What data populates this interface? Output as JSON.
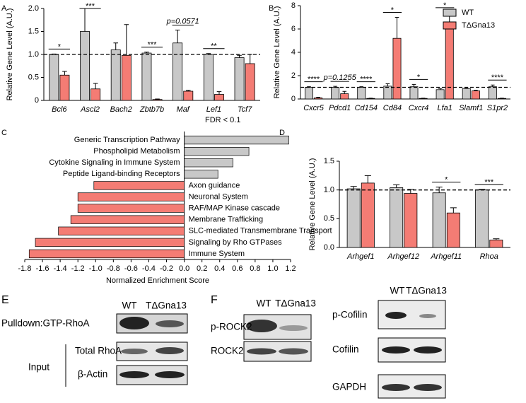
{
  "chart_data": [
    {
      "type": "bar",
      "panel": "A",
      "ylabel": "Relative Gene Level (A.U.)",
      "categories": [
        "Bcl6",
        "Ascl2",
        "Bach2",
        "Zbtb7b",
        "Maf",
        "Lef1",
        "Tcf7"
      ],
      "series": [
        {
          "name": "WT",
          "color": "#c8c8c8",
          "values": [
            1.0,
            1.5,
            1.1,
            1.03,
            1.25,
            1.0,
            0.93
          ],
          "errors": [
            0.01,
            0.5,
            0.15,
            0.02,
            0.28,
            0.02,
            0.05
          ]
        },
        {
          "name": "TΔGna13",
          "color": "#f47c74",
          "values": [
            0.55,
            0.25,
            0.98,
            0.02,
            0.2,
            0.13,
            0.8
          ],
          "errors": [
            0.08,
            0.12,
            0.67,
            0.01,
            0.02,
            0.06,
            0.2
          ]
        }
      ],
      "annotations": [
        "*",
        "***",
        null,
        "***",
        "p=0.0571",
        "**",
        null
      ],
      "reference_line": 1,
      "ylim": [
        0,
        2
      ],
      "yticks": [
        0,
        0.5,
        {
          "value": 1,
          "label": "1.0"
        },
        1.5,
        {
          "value": 2,
          "label": "2.0"
        }
      ]
    },
    {
      "type": "bar",
      "panel": "B",
      "ylabel": "Relative Gene Level (A.U.)",
      "categories": [
        "Cxcr5",
        "Pdcd1",
        "Cd154",
        "Cd84",
        "Cxcr4",
        "Lfa1",
        "Slamf1",
        "S1pr2"
      ],
      "series": [
        {
          "name": "WT",
          "color": "#c8c8c8",
          "values": [
            1.0,
            1.0,
            1.0,
            1.1,
            1.05,
            0.8,
            0.9,
            1.05
          ],
          "errors": [
            0.05,
            0.08,
            0.05,
            0.2,
            0.2,
            0.1,
            0.05,
            0.15
          ]
        },
        {
          "name": "TΔGna13",
          "color": "#f47c74",
          "values": [
            0.1,
            0.45,
            0.05,
            5.2,
            0.05,
            6.4,
            0.7,
            0.05
          ],
          "errors": [
            0.05,
            0.2,
            0.02,
            1.8,
            0.02,
            1.0,
            0.05,
            0.02
          ]
        }
      ],
      "annotations": [
        "****",
        "p=0.1255",
        "****",
        "*",
        "*",
        "*",
        null,
        "****"
      ],
      "reference_line": 1,
      "legend": "upper right",
      "ylim": [
        0,
        8
      ],
      "yticks": [
        0,
        2,
        4,
        6,
        8
      ]
    },
    {
      "type": "barh",
      "panel": "C",
      "note": "FDR < 0.1",
      "xlabel": "Normalized Enrichment Score",
      "categories": [
        "Generic Transcription Pathway",
        "Phospholipid Metabolism",
        "Cytokine Signaling in Immune System",
        "Peptide Ligand-binding Receptors",
        "Axon guidance",
        "Neuronal System",
        "RAF/MAP Kinase cascade",
        "Membrane Trafficking",
        "SLC-mediated Transmembrane Transport",
        "Signaling by Rho GTPases",
        "Immune System"
      ],
      "values": [
        1.18,
        0.73,
        0.55,
        0.38,
        -1.02,
        -1.2,
        -1.2,
        -1.28,
        -1.42,
        -1.68,
        -1.75
      ],
      "colors": [
        "#c8c8c8",
        "#c8c8c8",
        "#c8c8c8",
        "#c8c8c8",
        "#f47c74",
        "#f47c74",
        "#f47c74",
        "#f47c74",
        "#f47c74",
        "#f47c74",
        "#f47c74"
      ],
      "highlight_index": 9,
      "highlight_color": "#e0201b",
      "xlim": [
        -1.8,
        1.2
      ],
      "xticks": [
        -1.8,
        -1.6,
        -1.4,
        -1.2,
        {
          "value": -1,
          "label": "-1.0"
        },
        -0.8,
        -0.6,
        -0.4,
        -0.2,
        {
          "value": 0,
          "label": "0.0"
        },
        0.2,
        0.4,
        0.6,
        0.8,
        {
          "value": 1,
          "label": "1.0"
        },
        1.2
      ]
    },
    {
      "type": "bar",
      "panel": "D",
      "ylabel": "Relative Gene Level (A.U.)",
      "categories": [
        "Arhgef1",
        "Arhgef12",
        "Arhgef11",
        "Rhoa"
      ],
      "series": [
        {
          "name": "WT",
          "color": "#c8c8c8",
          "values": [
            1.02,
            1.04,
            0.95,
            1.0
          ],
          "errors": [
            0.04,
            0.05,
            0.1,
            0.01
          ]
        },
        {
          "name": "TΔGna13",
          "color": "#f47c74",
          "values": [
            1.12,
            0.94,
            0.6,
            0.13
          ],
          "errors": [
            0.13,
            0.07,
            0.09,
            0.02
          ]
        }
      ],
      "annotations": [
        null,
        null,
        "*",
        "***"
      ],
      "reference_line": 1,
      "ylim": [
        0,
        1.5
      ],
      "yticks": [
        {
          "value": 0,
          "label": "0.0"
        },
        0.5,
        {
          "value": 1,
          "label": "1.0"
        },
        1.5
      ]
    }
  ],
  "blots": [
    {
      "panel": "E",
      "lanes": [
        "WT",
        "TΔGna13"
      ],
      "rows": [
        "Pulldown:GTP-RhoA",
        "Total RhoA",
        "β-Actin"
      ],
      "group": "Input"
    },
    {
      "panel": "F",
      "lanes": [
        "WT",
        "TΔGna13"
      ],
      "rows": [
        "p-ROCK2",
        "ROCK2"
      ]
    },
    {
      "lanes": [
        "WT",
        "TΔGna13"
      ],
      "rows": [
        "p-Cofilin",
        "Cofilin",
        "GAPDH"
      ]
    }
  ]
}
